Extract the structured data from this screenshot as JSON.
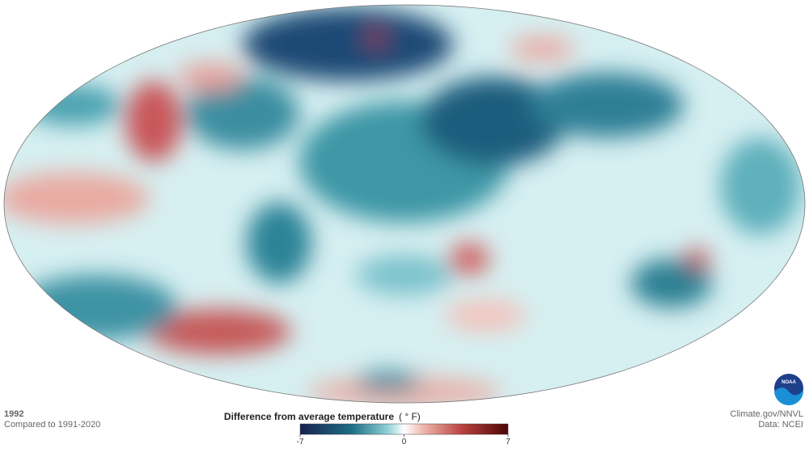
{
  "caption": {
    "year": "1992",
    "baseline": "Compared to 1991-2020"
  },
  "legend": {
    "title": "Difference from average temperature",
    "unit": "( ° F)",
    "lim": [
      -7,
      7
    ],
    "ticks": [
      -7,
      0,
      7
    ]
  },
  "logo": "NOAA",
  "credits": {
    "source": "Climate.gov/NNVL",
    "data": "Data: NCEI"
  }
}
